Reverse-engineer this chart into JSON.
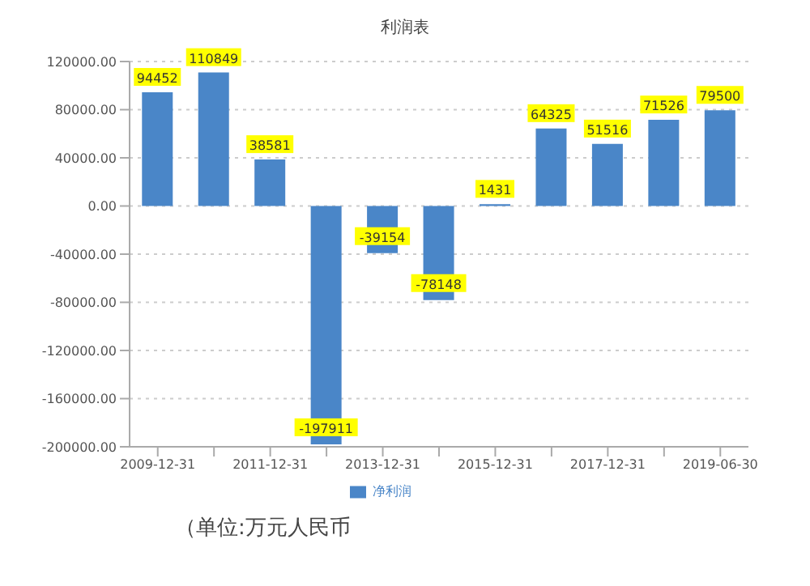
{
  "chart_data": {
    "type": "bar",
    "title": "利润表",
    "categories": [
      "2009-12-31",
      null,
      "2011-12-31",
      null,
      "2013-12-31",
      null,
      "2015-12-31",
      null,
      "2017-12-31",
      null,
      "2019-06-30"
    ],
    "series": [
      {
        "name": "净利润",
        "color": "#4a86c8",
        "values": [
          94452,
          110849,
          38581,
          -197911,
          -39154,
          -78148,
          1431,
          64325,
          51516,
          71526,
          79500
        ]
      }
    ],
    "ylim": [
      -200000,
      120000
    ],
    "yticks": [
      {
        "value": -200000,
        "label": "-200000.00"
      },
      {
        "value": -160000,
        "label": "-160000.00"
      },
      {
        "value": -120000,
        "label": "-120000.00"
      },
      {
        "value": -80000,
        "label": "-80000.00"
      },
      {
        "value": -40000,
        "label": "-40000.00"
      },
      {
        "value": 0,
        "label": "0.00"
      },
      {
        "value": 40000,
        "label": "40000.00"
      },
      {
        "value": 80000,
        "label": "80000.00"
      },
      {
        "value": 120000,
        "label": "120000.00"
      }
    ],
    "grid": "y",
    "legend": "bottom",
    "data_labels": true,
    "annotations": [
      "（单位:万元人民币"
    ]
  }
}
